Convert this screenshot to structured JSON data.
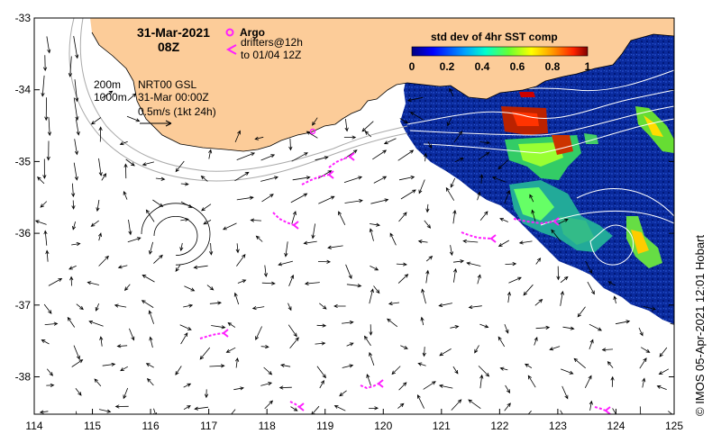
{
  "map": {
    "date": "31-Mar-2021",
    "time": "08Z",
    "depth_labels": [
      "200m",
      "1000m"
    ],
    "model_lines": [
      "NRT00 GSL",
      "31-Mar 00:00Z",
      "0.5m/s (1kt 24h)"
    ],
    "argo_label": "Argo",
    "drifter_lines": [
      "drifters@12h",
      "to 01/04 12Z"
    ],
    "colorbar_title": "std dev of 4hr SST comp",
    "colorbar_ticks": [
      "0",
      "0.2",
      "0.4",
      "0.6",
      "0.8",
      "1"
    ],
    "credit": "© IMOS 05-Apr-2021 12:01 Hobart",
    "x_ticks": [
      "114",
      "115",
      "116",
      "117",
      "118",
      "119",
      "120",
      "121",
      "122",
      "123",
      "124",
      "125"
    ],
    "y_ticks": [
      "-33",
      "-34",
      "-35",
      "-36",
      "-37",
      "-38"
    ],
    "colors": {
      "land": "#fccc99",
      "sea_dark": "#00239a",
      "marker": "#ff1fff",
      "arrow": "#000000"
    }
  }
}
